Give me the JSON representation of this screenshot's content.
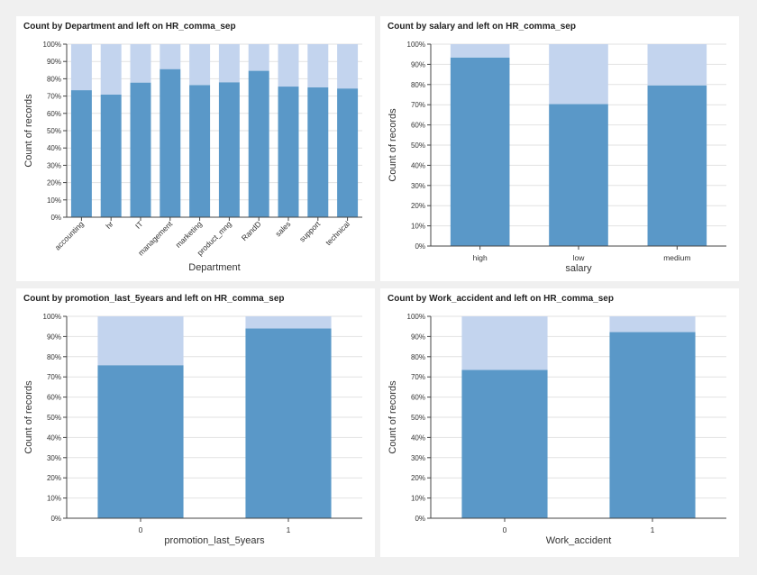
{
  "colors": {
    "left0": "#5a98c8",
    "left1": "#c3d4ee",
    "grid": "#e2e2e2",
    "axis": "#444444"
  },
  "y_ticks": [
    "0%",
    "10%",
    "20%",
    "30%",
    "40%",
    "50%",
    "60%",
    "70%",
    "80%",
    "90%",
    "100%"
  ],
  "chart_data": [
    {
      "type": "bar",
      "stacked": "percent",
      "title": "Count by Department and left on HR_comma_sep",
      "xlabel": "Department",
      "ylabel": "Count of records",
      "ylim": [
        0,
        100
      ],
      "grid": true,
      "categories": [
        "accounting",
        "hr",
        "IT",
        "management",
        "marketing",
        "product_mng",
        "RandD",
        "sales",
        "support",
        "technical"
      ],
      "series": [
        {
          "values": [
            73.4,
            70.9,
            77.8,
            85.6,
            76.4,
            78.0,
            84.6,
            75.5,
            75.1,
            74.4
          ]
        },
        {
          "values": [
            26.6,
            29.1,
            22.2,
            14.4,
            23.6,
            22.0,
            15.4,
            24.5,
            24.9,
            25.6
          ]
        }
      ]
    },
    {
      "type": "bar",
      "stacked": "percent",
      "title": "Count by salary and left on HR_comma_sep",
      "xlabel": "salary",
      "ylabel": "Count of records",
      "ylim": [
        0,
        100
      ],
      "grid": true,
      "categories": [
        "high",
        "low",
        "medium"
      ],
      "series": [
        {
          "values": [
            93.4,
            70.3,
            79.6
          ]
        },
        {
          "values": [
            6.6,
            29.7,
            20.4
          ]
        }
      ]
    },
    {
      "type": "bar",
      "stacked": "percent",
      "title": "Count by promotion_last_5years and left on HR_comma_sep",
      "xlabel": "promotion_last_5years",
      "ylabel": "Count of records",
      "ylim": [
        0,
        100
      ],
      "grid": true,
      "categories": [
        "0",
        "1"
      ],
      "series": [
        {
          "values": [
            75.8,
            94.0
          ]
        },
        {
          "values": [
            24.2,
            6.0
          ]
        }
      ]
    },
    {
      "type": "bar",
      "stacked": "percent",
      "title": "Count by Work_accident and left on HR_comma_sep",
      "xlabel": "Work_accident",
      "ylabel": "Count of records",
      "ylim": [
        0,
        100
      ],
      "grid": true,
      "categories": [
        "0",
        "1"
      ],
      "series": [
        {
          "values": [
            73.5,
            92.2
          ]
        },
        {
          "values": [
            26.5,
            7.8
          ]
        }
      ]
    }
  ]
}
